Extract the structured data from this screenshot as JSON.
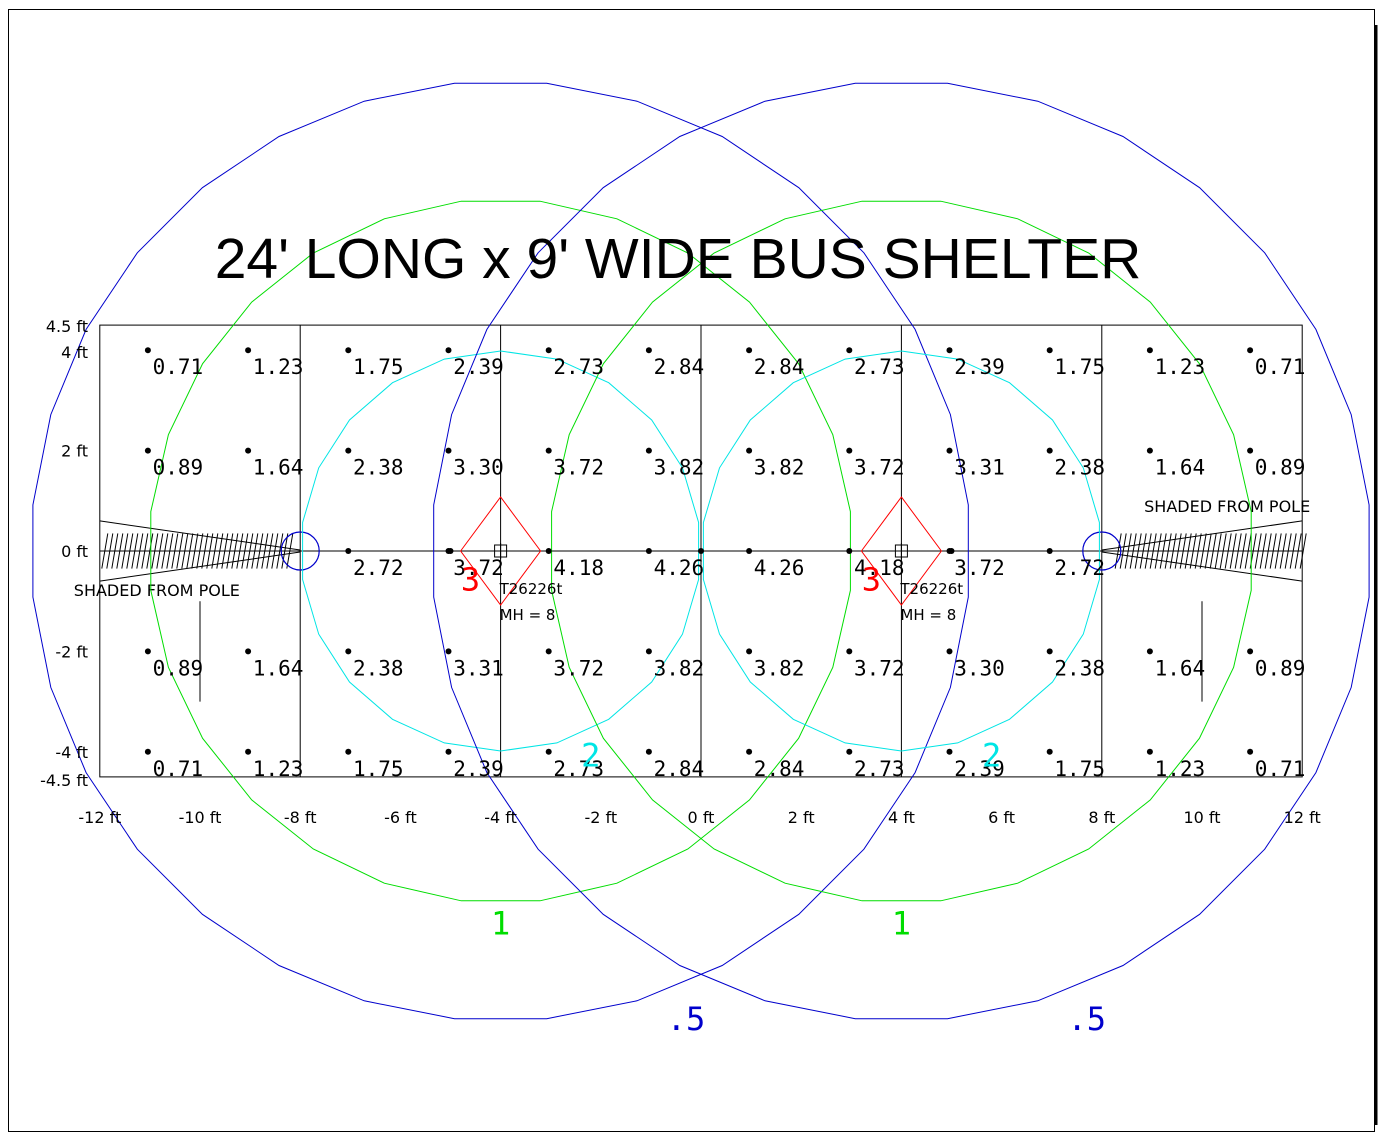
{
  "title": "24' LONG x 9' WIDE BUS SHELTER",
  "colors": {
    "contour_3": "#ff0000",
    "contour_2": "#00e5e5",
    "contour_1": "#00dd00",
    "contour_05": "#0000cc",
    "grid": "#000000"
  },
  "x_axis_labels": [
    "-12 ft",
    "-10 ft",
    "-8 ft",
    "-6 ft",
    "-4 ft",
    "-2 ft",
    "0 ft",
    "2 ft",
    "4 ft",
    "6 ft",
    "8 ft",
    "10 ft",
    "12 ft"
  ],
  "y_axis_labels": [
    {
      "text": "4.5 ft",
      "y": 4.5
    },
    {
      "text": "4 ft",
      "y": 4
    },
    {
      "text": "2 ft",
      "y": 2
    },
    {
      "text": "0 ft",
      "y": 0
    },
    {
      "text": "-2 ft",
      "y": -2
    },
    {
      "text": "-4 ft",
      "y": -4
    },
    {
      "text": "-4.5 ft",
      "y": -4.5
    }
  ],
  "contour_labels": [
    {
      "text": "3",
      "level": "contour_3"
    },
    {
      "text": "3",
      "level": "contour_3"
    },
    {
      "text": "2",
      "level": "contour_2"
    },
    {
      "text": "2",
      "level": "contour_2"
    },
    {
      "text": "1",
      "level": "contour_1"
    },
    {
      "text": "1",
      "level": "contour_1"
    },
    {
      "text": ".5",
      "level": "contour_05"
    },
    {
      "text": ".5",
      "level": "contour_05"
    }
  ],
  "luminaires": [
    {
      "x": -4,
      "y": 0,
      "name": "T26226t",
      "mounting": "MH = 8"
    },
    {
      "x": 4,
      "y": 0,
      "name": "T26226t",
      "mounting": "MH = 8"
    }
  ],
  "poles": [
    {
      "x": -8,
      "y": 0
    },
    {
      "x": 8,
      "y": 0
    }
  ],
  "shade_labels": [
    "SHADED FROM POLE",
    "SHADED FROM POLE"
  ],
  "chart_data": {
    "type": "heatmap",
    "title": "24' LONG x 9' WIDE BUS SHELTER",
    "x_range": [
      -12,
      12
    ],
    "y_range": [
      -4.5,
      4.5
    ],
    "contour_levels": [
      3,
      2,
      1,
      0.5
    ],
    "grid_lines": true,
    "x": [
      -11,
      -9,
      -7,
      -5,
      -3,
      -1,
      1,
      3,
      5,
      7,
      9,
      11
    ],
    "y": [
      4,
      2,
      0,
      -2,
      -4
    ],
    "rows": [
      [
        "0.71",
        "1.23",
        "1.75",
        "2.39",
        "2.73",
        "2.84",
        "2.84",
        "2.73",
        "2.39",
        "1.75",
        "1.23",
        "0.71"
      ],
      [
        "0.89",
        "1.64",
        "2.38",
        "3.30",
        "3.72",
        "3.82",
        "3.82",
        "3.72",
        "3.31",
        "2.38",
        "1.64",
        "0.89"
      ],
      [
        "",
        "",
        "2.72",
        "3.72",
        "4.18",
        "4.26",
        "4.26",
        "4.18",
        "3.72",
        "2.72",
        "",
        ""
      ],
      [
        "0.89",
        "1.64",
        "2.38",
        "3.31",
        "3.72",
        "3.82",
        "3.82",
        "3.72",
        "3.30",
        "2.38",
        "1.64",
        "0.89"
      ],
      [
        "0.71",
        "1.23",
        "1.75",
        "2.39",
        "2.73",
        "2.84",
        "2.84",
        "2.73",
        "2.39",
        "1.75",
        "1.23",
        "0.71"
      ]
    ]
  }
}
